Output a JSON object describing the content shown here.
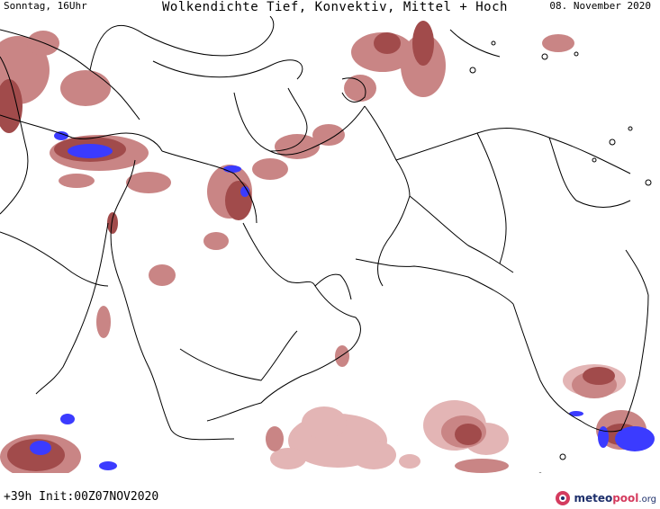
{
  "header": {
    "left": "Sonntag, 16Uhr",
    "center": "Wolkendichte  Tief, Konvektiv, Mittel + Hoch",
    "right": "08. November 2020"
  },
  "footer": {
    "left": "+39h Init:00Z07NOV2020",
    "logo": {
      "brand_part1": "meteo",
      "brand_part2": "pool",
      "suffix": ".org"
    }
  },
  "map": {
    "region": "Middle East and South Asia",
    "colors": {
      "low_density": "#e3b5b5",
      "medium_density": "#c98585",
      "high_density": "#a14b4b",
      "convective": "#3b3bff",
      "borders": "#000000"
    }
  }
}
